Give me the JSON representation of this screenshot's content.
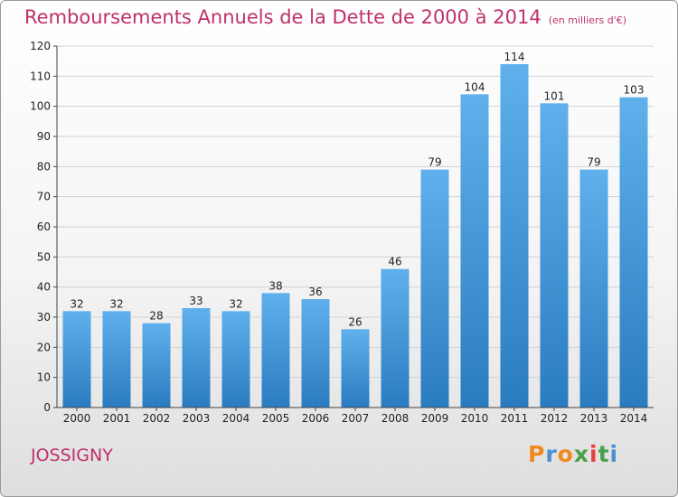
{
  "header": {
    "title": "Remboursements Annuels de la Dette de 2000 à 2014",
    "unit": "(en milliers d'€)"
  },
  "footer": {
    "commune": "JOSSIGNY",
    "logo": "Proxiti"
  },
  "colors": {
    "title": "#c0306b",
    "bar_top": "#5fb0ec",
    "bar_bottom": "#2a7cc0",
    "logo_letters": [
      "#f08a1c",
      "#4a8fd0",
      "#f08a1c",
      "#4aa04a",
      "#e84040",
      "#4aa04a",
      "#4a8fd0"
    ]
  },
  "chart_data": {
    "type": "bar",
    "title": "Remboursements Annuels de la Dette de 2000 à 2014",
    "categories": [
      "2000",
      "2001",
      "2002",
      "2003",
      "2004",
      "2005",
      "2006",
      "2007",
      "2008",
      "2009",
      "2010",
      "2011",
      "2012",
      "2013",
      "2014"
    ],
    "values": [
      32,
      32,
      28,
      33,
      32,
      38,
      36,
      26,
      46,
      79,
      104,
      114,
      101,
      79,
      103
    ],
    "ylim": [
      0,
      120
    ],
    "yticks": [
      0,
      10,
      20,
      30,
      40,
      50,
      60,
      70,
      80,
      90,
      100,
      110,
      120
    ],
    "grid": true
  }
}
